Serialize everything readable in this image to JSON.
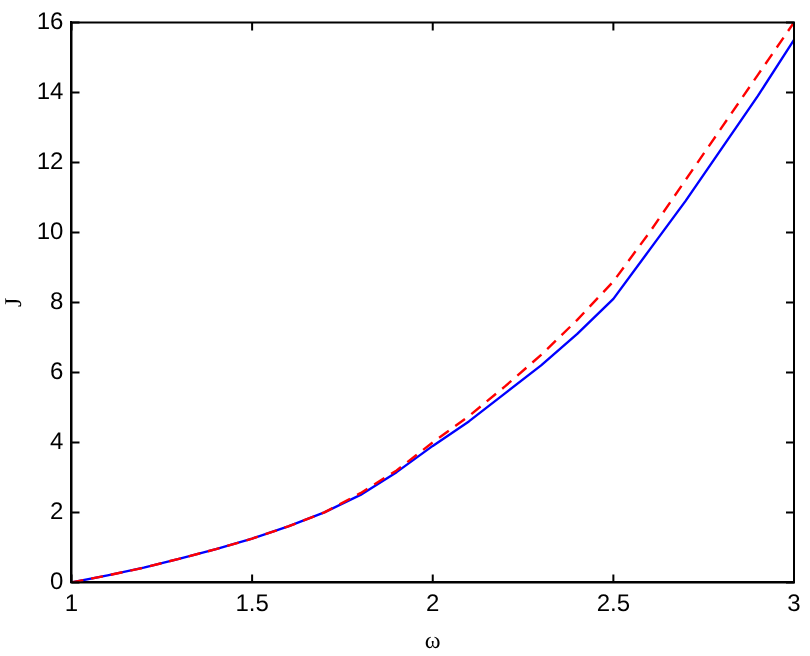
{
  "chart_data": {
    "type": "line",
    "xlabel": "ω",
    "ylabel": "J",
    "x": [
      1,
      1.1,
      1.2,
      1.3,
      1.4,
      1.5,
      1.6,
      1.7,
      1.8,
      1.9,
      2,
      2.1,
      2.2,
      2.3,
      2.4,
      2.5,
      2.6,
      2.7,
      2.8,
      2.9,
      3
    ],
    "series": [
      {
        "color": "#0000ff",
        "line_style": "solid",
        "values": [
          0,
          0.2,
          0.42,
          0.68,
          0.95,
          1.25,
          1.6,
          2.0,
          2.5,
          3.15,
          3.9,
          4.6,
          5.4,
          6.2,
          7.1,
          8.1,
          9.5,
          10.9,
          12.4,
          13.9,
          15.5
        ]
      },
      {
        "color": "#ff0000",
        "line_style": "dashed",
        "values": [
          0,
          0.2,
          0.42,
          0.68,
          0.95,
          1.25,
          1.6,
          2.0,
          2.55,
          3.2,
          4.0,
          4.75,
          5.6,
          6.5,
          7.5,
          8.6,
          10.0,
          11.5,
          13.0,
          14.5,
          16.0
        ]
      }
    ],
    "xlim": [
      1,
      3
    ],
    "xticks": [
      1,
      1.5,
      2,
      2.5,
      3
    ],
    "ylim": [
      0,
      16
    ],
    "yticks": [
      0,
      2,
      4,
      6,
      8,
      10,
      12,
      14,
      16
    ],
    "grid": false,
    "legend": false,
    "marker": "none"
  }
}
